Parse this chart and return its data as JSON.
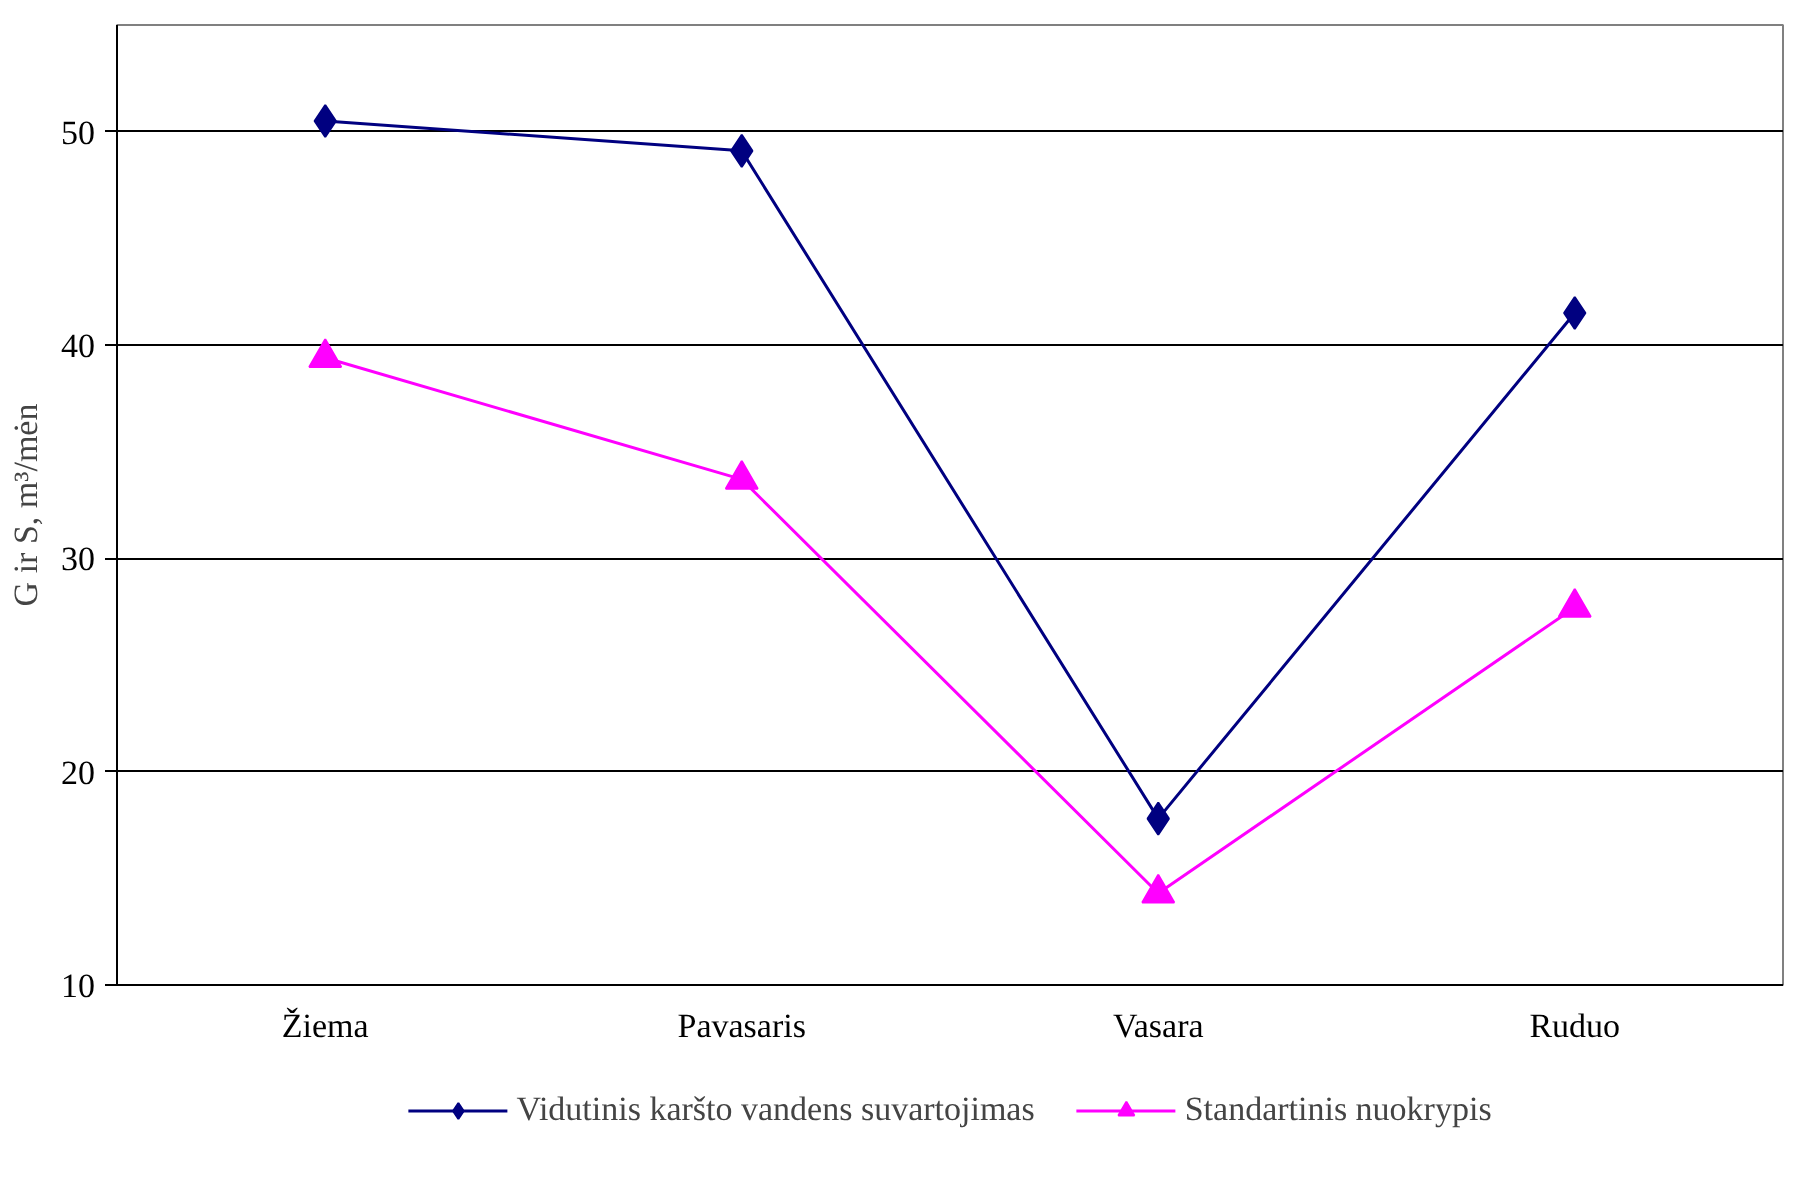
{
  "chart_data": {
    "type": "line",
    "ylabel": "G ir S, m³/mėn",
    "categories": [
      "Žiema",
      "Pavasaris",
      "Vasara",
      "Ruduo"
    ],
    "series": [
      {
        "name": "Vidutinis karšto vandens suvartojimas",
        "color": "#000080",
        "marker": "diamond",
        "values": [
          50.5,
          49.1,
          17.8,
          41.5
        ]
      },
      {
        "name": "Standartinis nuokrypis",
        "color": "#ff00ff",
        "marker": "triangle",
        "values": [
          39.4,
          33.7,
          14.3,
          27.7
        ]
      }
    ],
    "ylim": [
      10,
      55
    ],
    "yticks": [
      10,
      20,
      30,
      40,
      50
    ],
    "grid": "y",
    "legend": "bottom",
    "line_style": "solid"
  }
}
